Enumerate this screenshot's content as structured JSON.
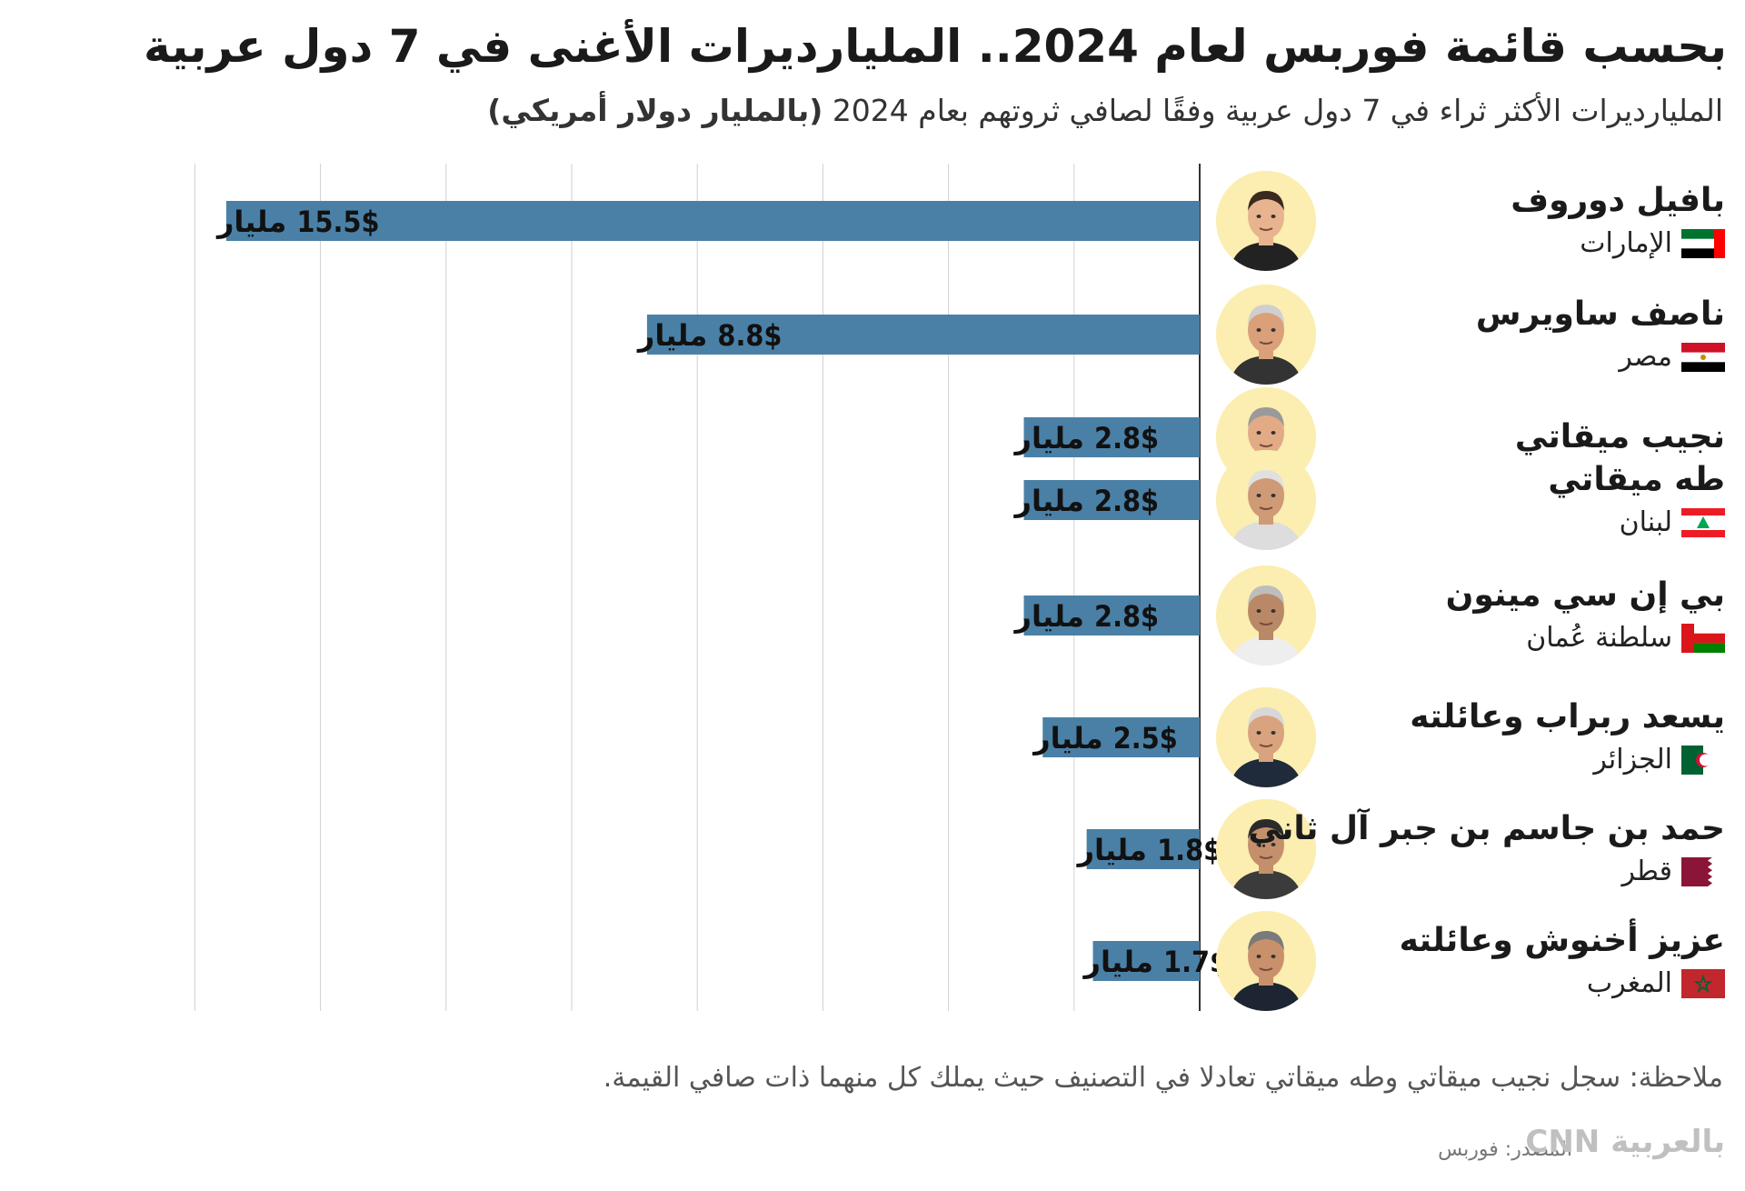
{
  "title": "بحسب قائمة فوربس لعام 2024.. المليارديرات الأغنى في 7 دول عربية",
  "subtitle": "المليارديرات الأكثر ثراء في 7 دول عربية وفقًا لصافي ثروتهم بعام 2024",
  "subtitle_unit": "(بالمليار دولار أمريكي)",
  "value_prefix": "$",
  "value_suffix": "مليار",
  "people": [
    {
      "name": "بافيل دوروف",
      "country": "الإمارات",
      "flag": "uae-flag-icon",
      "avatar": "pavel-durov-photo"
    },
    {
      "name": "ناصف ساويرس",
      "country": "مصر",
      "flag": "egypt-flag-icon",
      "avatar": "nassef-sawiris-photo"
    },
    {
      "name": "نجيب ميقاتي",
      "country": "",
      "flag": "",
      "avatar": "najib-mikati-photo"
    },
    {
      "name": "طه ميقاتي",
      "country": "لبنان",
      "flag": "lebanon-flag-icon",
      "avatar": "taha-mikati-photo"
    },
    {
      "name": "بي إن سي مينون",
      "country": "سلطنة عُمان",
      "flag": "oman-flag-icon",
      "avatar": "pnc-menon-photo"
    },
    {
      "name": "يسعد ربراب وعائلته",
      "country": "الجزائر",
      "flag": "algeria-flag-icon",
      "avatar": "issad-rebrab-photo"
    },
    {
      "name": "حمد بن جاسم بن جبر آل ثاني",
      "country": "قطر",
      "flag": "qatar-flag-icon",
      "avatar": "hamad-bin-jassim-photo"
    },
    {
      "name": "عزيز أخنوش وعائلته",
      "country": "المغرب",
      "flag": "morocco-flag-icon",
      "avatar": "aziz-akhannouch-photo"
    }
  ],
  "chart_data": {
    "type": "bar",
    "orientation": "horizontal",
    "categories": [
      "بافيل دوروف",
      "ناصف ساويرس",
      "نجيب ميقاتي",
      "طه ميقاتي",
      "بي إن سي مينون",
      "يسعد ربراب وعائلته",
      "حمد بن جاسم بن جبر آل ثاني",
      "عزيز أخنوش وعائلته"
    ],
    "values": [
      15.5,
      8.8,
      2.8,
      2.8,
      2.8,
      2.5,
      1.8,
      1.7
    ],
    "data_labels": [
      "15.5",
      "8.8",
      "2.8",
      "2.8",
      "2.8",
      "2.5",
      "1.8",
      "1.7"
    ],
    "title": "",
    "xlabel": "",
    "ylabel": "",
    "xlim": [
      0,
      16
    ],
    "bar_color": "#4a80a6",
    "grid": true,
    "bars_direction": "right-to-left"
  },
  "note": "ملاحظة: سجل نجيب ميقاتي وطه ميقاتي تعادلا في التصنيف حيث يملك كل منهما ذات صافي القيمة.",
  "source": "المصدر: فوربس",
  "logo_text": "بالعربية CNN"
}
